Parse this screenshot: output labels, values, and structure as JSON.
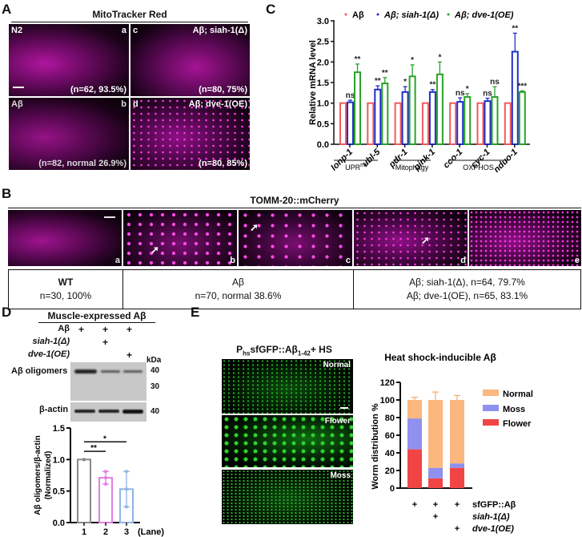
{
  "panelA": {
    "label": "A",
    "title": "MitoTracker Red",
    "images": [
      {
        "tl": "N2",
        "tr": "a",
        "bottom": "(n=62, 93.5%)"
      },
      {
        "tl": "c",
        "tr": "Aβ; siah-1(Δ)",
        "bottom": "(n=80, 75%)"
      },
      {
        "tl": "Aβ",
        "tr": "b",
        "bottom": "(n=82, normal 26.9%)"
      },
      {
        "tl": "d",
        "tr": "Aβ; dve-1(OE)",
        "bottom": "(n=80, 85%)"
      }
    ]
  },
  "panelB": {
    "label": "B",
    "title": "TOMM-20::mCherry",
    "images": [
      "a",
      "b",
      "c",
      "d",
      "e"
    ],
    "table": [
      {
        "line1": "WT",
        "line2": "n=30, 100%"
      },
      {
        "line1": "Aβ",
        "line2": "n=70,  normal 38.6%"
      },
      {
        "line1": "Aβ; siah-1(Δ), n=64, 79.7%",
        "line2": "Aβ; dve-1(OE), n=65, 83.1%"
      }
    ]
  },
  "panelC": {
    "label": "C"
  },
  "panelD": {
    "label": "D",
    "title": "Muscle-expressed Aβ",
    "rows": [
      {
        "name": "Aβ",
        "marks": [
          "+",
          "+",
          "+"
        ]
      },
      {
        "name": "siah-1(Δ)",
        "marks": [
          "",
          "+",
          ""
        ]
      },
      {
        "name": "dve-1(OE)",
        "marks": [
          "",
          "",
          "+"
        ]
      }
    ],
    "kda": "kDa",
    "blot1": {
      "name": "Aβ oligomers",
      "markers": [
        "40",
        "30"
      ]
    },
    "blot2": {
      "name": "β-actin",
      "markers": [
        "40"
      ]
    },
    "lane_label": "(Lane)"
  },
  "panelE": {
    "label": "E",
    "img_title": "P",
    "img_title_sub": "hs",
    "img_title_rest": "sfGFP::Aβ",
    "img_title_sub2": "1-42",
    "img_title_end": "+ HS",
    "images": [
      "Normal",
      "Flower",
      "Moss"
    ],
    "rows": [
      {
        "name": "sfGFP::Aβ",
        "marks": [
          "+",
          "+",
          "+"
        ]
      },
      {
        "name": "siah-1(Δ)",
        "marks": [
          "",
          "+",
          ""
        ]
      },
      {
        "name": "dve-1(OE)",
        "marks": [
          "",
          "",
          "+"
        ]
      }
    ]
  },
  "chart_data": [
    {
      "type": "bar",
      "title": "",
      "ylabel": "Relative mRNA level",
      "ylim": [
        0,
        3.0
      ],
      "yticks": [
        "0.0",
        "0.5",
        "1.0",
        "1.5",
        "2.0",
        "2.5",
        "3.0"
      ],
      "categories": [
        "lonp-1",
        "ubl-5",
        "pdr-1",
        "pink-1",
        "cco-1",
        "cyc-1",
        "nduo-1"
      ],
      "groups": [
        {
          "label": "UPRmt",
          "categories": [
            "lonp-1",
            "ubl-5"
          ]
        },
        {
          "label": "Mitophagy",
          "categories": [
            "pdr-1",
            "pink-1"
          ]
        },
        {
          "label": "OXPHOS",
          "categories": [
            "cco-1",
            "cyc-1",
            "nduo-1"
          ]
        }
      ],
      "legend": [
        "Aβ",
        "Aβ; siah-1(Δ)",
        "Aβ; dve-1(OE)"
      ],
      "colors": [
        "#f05a5a",
        "#1f2fc4",
        "#27a327"
      ],
      "series": [
        {
          "name": "Aβ",
          "values": [
            1.0,
            1.0,
            1.0,
            1.0,
            1.0,
            1.0,
            1.0
          ],
          "err": [
            0,
            0,
            0,
            0,
            0,
            0,
            0
          ],
          "sig": [
            "",
            "",
            "",
            "",
            "",
            "",
            ""
          ]
        },
        {
          "name": "Aβ; siah-1(Δ)",
          "values": [
            1.02,
            1.33,
            1.27,
            1.27,
            1.03,
            1.05,
            2.25
          ],
          "err": [
            0.05,
            0.09,
            0.13,
            0.06,
            0.1,
            0.07,
            0.45
          ],
          "sig": [
            "ns",
            "**",
            "*",
            "**",
            "ns",
            "ns",
            "**"
          ]
        },
        {
          "name": "Aβ; dve-1(OE)",
          "values": [
            1.75,
            1.48,
            1.65,
            1.7,
            1.15,
            1.15,
            1.27
          ],
          "err": [
            0.2,
            0.14,
            0.28,
            0.3,
            0.08,
            0.25,
            0.03
          ],
          "sig": [
            "**",
            "**",
            "*",
            "*",
            "*",
            "ns",
            "***"
          ]
        }
      ]
    },
    {
      "type": "bar",
      "title": "",
      "ylabel": "Aβ oligomers/β-actin (Normalized)",
      "ylim": [
        0,
        1.5
      ],
      "yticks": [
        "0.0",
        "0.5",
        "1.0",
        "1.5"
      ],
      "categories": [
        "1",
        "2",
        "3"
      ],
      "xlabel": "(Lane)",
      "colors": [
        "#8a8a8a",
        "#e47ce4",
        "#8fb4e8"
      ],
      "values": [
        1.0,
        0.71,
        0.53
      ],
      "err": [
        0.0,
        0.1,
        0.28
      ],
      "points": [
        [
          1.0,
          1.0,
          1.0
        ],
        [
          0.81,
          0.71,
          0.61
        ],
        [
          0.81,
          0.53,
          0.25
        ]
      ],
      "significance": [
        {
          "from": "1",
          "to": "2",
          "label": "**"
        },
        {
          "from": "1",
          "to": "3",
          "label": "*"
        }
      ]
    },
    {
      "type": "bar",
      "title": "Heat shock-inducible Aβ",
      "ylabel": "Worm distribution %",
      "ylim": [
        0,
        120
      ],
      "yticks": [
        "0",
        "20",
        "40",
        "60",
        "80",
        "100",
        "120"
      ],
      "categories": [
        "sfGFP::Aβ",
        "sfGFP::Aβ; siah-1(Δ)",
        "sfGFP::Aβ; dve-1(OE)"
      ],
      "stacked": true,
      "legend": [
        "Normal",
        "Moss",
        "Flower"
      ],
      "colors": {
        "Normal": "#fbb77d",
        "Moss": "#9090f0",
        "Flower": "#f14545"
      },
      "series": [
        {
          "name": "Flower",
          "values": [
            44,
            11,
            23
          ],
          "err": [
            6,
            2,
            3
          ]
        },
        {
          "name": "Moss",
          "values": [
            35,
            12,
            5
          ],
          "err": [
            9,
            6,
            3
          ]
        },
        {
          "name": "Normal",
          "values": [
            21,
            77,
            72
          ],
          "err": [
            3,
            9,
            5
          ]
        }
      ]
    }
  ]
}
